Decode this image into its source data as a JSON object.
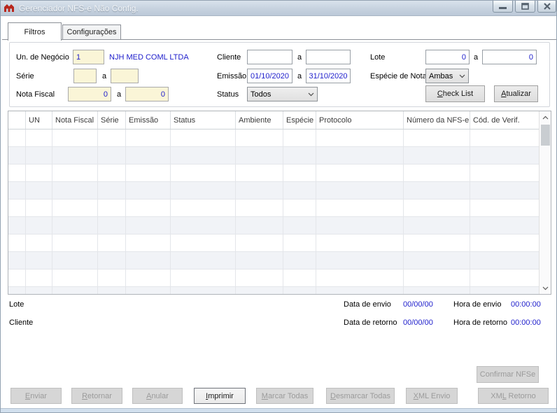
{
  "window_title": "Gerenciador NFS-e Não Config.",
  "tabs": [
    {
      "label": "Filtros"
    },
    {
      "label": "Configurações"
    }
  ],
  "filters": {
    "un_negocio": {
      "label": "Un. de Negócio",
      "value": "1",
      "company": "NJH MED COML LTDA"
    },
    "serie": {
      "label": "Série",
      "from": "",
      "sep": "a",
      "to": ""
    },
    "nota_fiscal": {
      "label": "Nota Fiscal",
      "from": "0",
      "sep": "a",
      "to": "0"
    },
    "cliente": {
      "label": "Cliente",
      "from": "",
      "sep": "a",
      "to": ""
    },
    "emissao": {
      "label": "Emissão",
      "from": "01/10/2020",
      "sep": "a",
      "to": "31/10/2020"
    },
    "status": {
      "label": "Status",
      "value": "Todos"
    },
    "lote": {
      "label": "Lote",
      "from": "0",
      "sep": "a",
      "to": "0"
    },
    "especie_nota": {
      "label": "Espécie de Nota",
      "value": "Ambas"
    },
    "check_list_button": {
      "pre": "",
      "accel": "C",
      "rest": "heck List"
    },
    "atualizar_button": {
      "pre": "",
      "accel": "A",
      "rest": "tualizar"
    }
  },
  "table": {
    "columns": [
      "",
      "UN",
      "Nota Fiscal",
      "Série",
      "Emissão",
      "Status",
      "Ambiente",
      "Espécie",
      "Protocolo",
      "Número da NFS-e",
      "Cód. de Verif."
    ],
    "rows": []
  },
  "details": {
    "lote_label": "Lote",
    "cliente_label": "Cliente",
    "data_envio_label": "Data de envio",
    "data_envio_value": "00/00/00",
    "hora_envio_label": "Hora de envio",
    "hora_envio_value": "00:00:00",
    "data_retorno_label": "Data de retorno",
    "data_retorno_value": "00/00/00",
    "hora_retorno_label": "Hora de retorno",
    "hora_retorno_value": "00:00:00"
  },
  "actions": {
    "confirmar_nfse": {
      "pre": "",
      "accel": "",
      "rest": "Confirmar NFSe",
      "enabled": false
    },
    "bottom_buttons": [
      {
        "name": "enviar",
        "pre": "",
        "accel": "E",
        "rest": "nviar",
        "enabled": false
      },
      {
        "name": "retornar",
        "pre": "",
        "accel": "R",
        "rest": "etornar",
        "enabled": false
      },
      {
        "name": "anular",
        "pre": "",
        "accel": "A",
        "rest": "nular",
        "enabled": false
      },
      {
        "name": "imprimir",
        "pre": "",
        "accel": "I",
        "rest": "mprimir",
        "enabled": true
      },
      {
        "name": "marcar-todas",
        "pre": "",
        "accel": "M",
        "rest": "arcar Todas",
        "enabled": false
      },
      {
        "name": "desmarcar-todas",
        "pre": "",
        "accel": "D",
        "rest": "esmarcar Todas",
        "enabled": false
      },
      {
        "name": "xml-envio",
        "pre": "",
        "accel": "X",
        "rest": "ML Envio",
        "enabled": false
      },
      {
        "name": "xml-retorno",
        "pre": "XM",
        "accel": "L",
        "rest": " Retorno",
        "enabled": false
      }
    ]
  },
  "colors": {
    "accent_blue": "#2020CC",
    "field_yellow": "#FAF5D7",
    "titlebar_blue": "#C8D4E2",
    "app_icon_red": "#B8271D"
  }
}
